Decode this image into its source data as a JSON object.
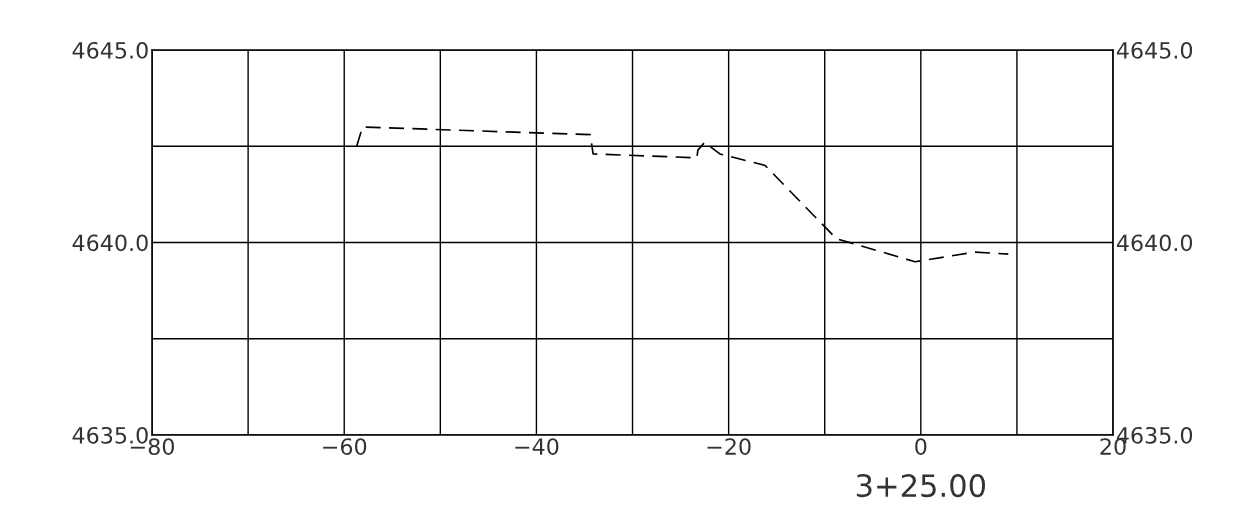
{
  "chart_data": {
    "type": "line",
    "xlabel": "3+25.00",
    "x": [
      -58.7,
      -58.1,
      -34.4,
      -34.1,
      -23.3,
      -23.2,
      -22.5,
      -20.9,
      -16.2,
      -8.8,
      -0.6,
      5.6,
      9.1
    ],
    "series": [
      {
        "color": "#000000",
        "values": [
          4642.5,
          4643.0,
          4642.8,
          4642.3,
          4642.2,
          4642.4,
          4642.6,
          4642.3,
          4642.0,
          4640.1,
          4639.5,
          4639.75,
          4639.7
        ]
      }
    ],
    "line_style": "dashed",
    "marker": "none",
    "grid": true,
    "legend": false,
    "xlim": [
      -80,
      20
    ],
    "xticks": [
      -80,
      {
        "value": -70,
        "label": null
      },
      -60,
      {
        "value": -50,
        "label": null
      },
      -40,
      {
        "value": -30,
        "label": null
      },
      -20,
      {
        "value": -10,
        "label": null
      },
      0,
      {
        "value": 10,
        "label": null
      },
      20
    ],
    "ylim": [
      4635,
      4645
    ],
    "yticks": [
      {
        "value": 4635,
        "label": "4635.0"
      },
      {
        "value": 4637.5,
        "label": null
      },
      {
        "value": 4640,
        "label": "4640.0"
      },
      {
        "value": 4642.5,
        "label": null
      },
      {
        "value": 4645,
        "label": "4645.0"
      }
    ],
    "y2lim": [
      4635,
      4645
    ],
    "y2ticks": [
      {
        "value": 4635,
        "label": "4635.0"
      },
      {
        "value": 4637.5,
        "label": null
      },
      {
        "value": 4640,
        "label": "4640.0"
      },
      {
        "value": 4642.5,
        "label": null
      },
      {
        "value": 4645,
        "label": "4645.0"
      }
    ]
  }
}
